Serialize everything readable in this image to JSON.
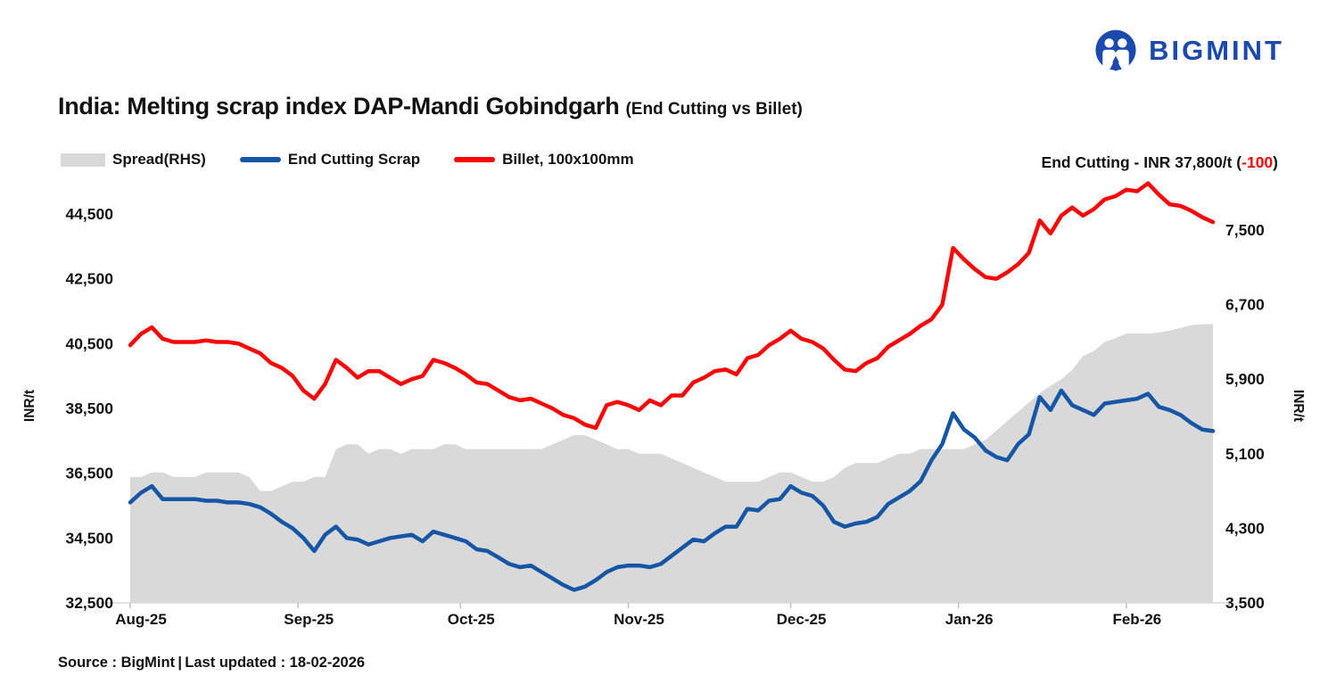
{
  "logo": {
    "brand": "BIGMINT",
    "color": "#1b49ae"
  },
  "title": {
    "main": "India: Melting scrap index DAP-Mandi Gobindgarh",
    "sub": "(End Cutting vs Billet)"
  },
  "legend": [
    {
      "label": "Spread(RHS)",
      "type": "area",
      "color": "#d9d9d9"
    },
    {
      "label": "End Cutting Scrap",
      "type": "line",
      "color": "#1656a6"
    },
    {
      "label": "Billet, 100x100mm",
      "type": "line",
      "color": "#fb0606"
    }
  ],
  "annotation": {
    "prefix": "End Cutting - INR 37,800/t (",
    "delta": "-100",
    "suffix": ")",
    "delta_color": "#fe0000"
  },
  "source": "Source : BigMint | Last updated : 18-02-2026",
  "chart_data": {
    "type": "combo",
    "description": "Daily index values sampled every 2 days from 01-Aug-2025 to 17-Feb-2026",
    "axes": {
      "left_title": "INR/t",
      "right_title": "INR/t",
      "left_ticks": [
        32500,
        34500,
        36500,
        38500,
        40500,
        42500,
        44500
      ],
      "left_range": [
        32500,
        45600
      ],
      "right_ticks": [
        3500,
        4300,
        5100,
        5900,
        6700,
        7500
      ],
      "right_range": [
        3500,
        8055
      ],
      "x_labels": [
        "Aug-25",
        "Sep-25",
        "Oct-25",
        "Nov-25",
        "Dec-25",
        "Jan-26",
        "Feb-26"
      ],
      "month_day_offsets": [
        0,
        31,
        61,
        92,
        122,
        153,
        184
      ],
      "total_days": 200,
      "grid": false,
      "axis_line_color": "#d9d9d9",
      "tick_color": "#bfbfbf",
      "label_color": "#121212"
    },
    "series": [
      {
        "name": "Spread(RHS)",
        "type": "area",
        "axis": "right",
        "color": "#d9d9d9",
        "values": [
          4850,
          4850,
          4900,
          4900,
          4850,
          4850,
          4850,
          4900,
          4900,
          4900,
          4900,
          4850,
          4700,
          4700,
          4750,
          4800,
          4800,
          4850,
          4850,
          5150,
          5200,
          5200,
          5100,
          5150,
          5150,
          5100,
          5150,
          5150,
          5150,
          5200,
          5200,
          5150,
          5150,
          5150,
          5150,
          5150,
          5150,
          5150,
          5150,
          5200,
          5250,
          5300,
          5300,
          5250,
          5200,
          5150,
          5150,
          5100,
          5100,
          5100,
          5050,
          5000,
          4950,
          4900,
          4850,
          4800,
          4800,
          4800,
          4800,
          4850,
          4900,
          4900,
          4850,
          4800,
          4800,
          4850,
          4950,
          5000,
          5000,
          5000,
          5050,
          5100,
          5100,
          5150,
          5150,
          5150,
          5150,
          5150,
          5200,
          5250,
          5350,
          5450,
          5550,
          5650,
          5750,
          5830,
          5900,
          6000,
          6150,
          6200,
          6300,
          6340,
          6390,
          6390,
          6390,
          6400,
          6420,
          6450,
          6480,
          6490,
          6490
        ]
      },
      {
        "name": "End Cutting Scrap",
        "type": "line",
        "axis": "left",
        "color": "#1656a6",
        "values": [
          35600,
          35900,
          36100,
          35700,
          35700,
          35700,
          35700,
          35650,
          35650,
          35600,
          35600,
          35550,
          35450,
          35250,
          35000,
          34800,
          34500,
          34100,
          34600,
          34850,
          34500,
          34450,
          34300,
          34400,
          34500,
          34550,
          34600,
          34400,
          34700,
          34600,
          34500,
          34400,
          34150,
          34100,
          33900,
          33700,
          33600,
          33650,
          33450,
          33250,
          33050,
          32900,
          33000,
          33200,
          33450,
          33600,
          33650,
          33650,
          33600,
          33700,
          33950,
          34200,
          34450,
          34400,
          34650,
          34850,
          34850,
          35400,
          35350,
          35650,
          35700,
          36100,
          35900,
          35800,
          35500,
          35000,
          34850,
          34950,
          35000,
          35150,
          35550,
          35750,
          35950,
          36250,
          36900,
          37400,
          38350,
          37850,
          37600,
          37200,
          37000,
          36900,
          37400,
          37700,
          38850,
          38450,
          39050,
          38600,
          38450,
          38300,
          38650,
          38700,
          38750,
          38800,
          38950,
          38550,
          38450,
          38300,
          38050,
          37850,
          37800
        ]
      },
      {
        "name": "Billet, 100x100mm",
        "type": "line",
        "axis": "left",
        "color": "#fb0606",
        "values": [
          40450,
          40800,
          41000,
          40650,
          40550,
          40550,
          40550,
          40600,
          40550,
          40550,
          40500,
          40350,
          40200,
          39900,
          39750,
          39500,
          39050,
          38800,
          39250,
          40000,
          39750,
          39450,
          39650,
          39650,
          39450,
          39250,
          39400,
          39500,
          40000,
          39900,
          39750,
          39550,
          39300,
          39250,
          39050,
          38850,
          38750,
          38800,
          38650,
          38500,
          38300,
          38200,
          38000,
          37900,
          38600,
          38700,
          38600,
          38450,
          38750,
          38600,
          38900,
          38900,
          39300,
          39450,
          39650,
          39700,
          39550,
          40050,
          40150,
          40450,
          40650,
          40900,
          40650,
          40550,
          40350,
          40000,
          39700,
          39650,
          39900,
          40050,
          40400,
          40600,
          40800,
          41050,
          41250,
          41700,
          43450,
          43100,
          42800,
          42550,
          42500,
          42700,
          42950,
          43300,
          44300,
          43900,
          44450,
          44700,
          44450,
          44650,
          44950,
          45050,
          45250,
          45200,
          45450,
          45100,
          44800,
          44750,
          44600,
          44400,
          44250
        ]
      }
    ]
  }
}
